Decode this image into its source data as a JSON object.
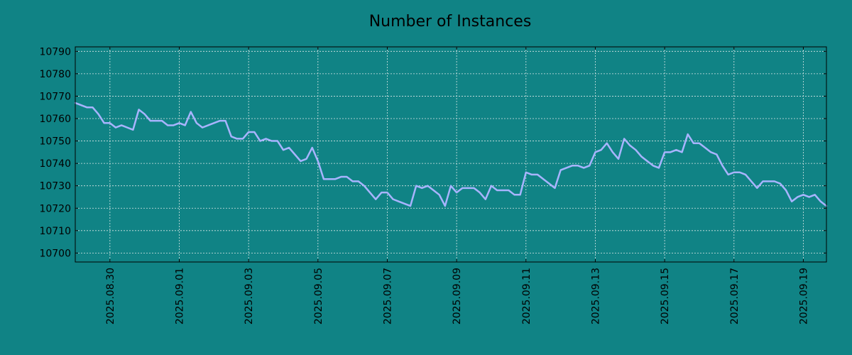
{
  "colors": {
    "background": "#108385",
    "line": "#a8b4ff",
    "grid": "#d9e6e6",
    "text": "#000000"
  },
  "chart_data": {
    "type": "line",
    "title": "Number of Instances",
    "xlabel": "",
    "ylabel": "",
    "grid": true,
    "x_start": "2025-08-29",
    "x_end": "2025-09-19T16:00",
    "x_step_hours": 4,
    "xlim": [
      "2025-08-29",
      "2025-09-19T16:00"
    ],
    "ylim": [
      10696,
      10792
    ],
    "yticks": [
      10700,
      10710,
      10720,
      10730,
      10740,
      10750,
      10760,
      10770,
      10780,
      10790
    ],
    "xticks": [
      "2025.08.30",
      "2025.09.01",
      "2025.09.03",
      "2025.09.05",
      "2025.09.07",
      "2025.09.09",
      "2025.09.11",
      "2025.09.13",
      "2025.09.15",
      "2025.09.17",
      "2025.09.19"
    ],
    "series": [
      {
        "values": [
          10767,
          10766,
          10765,
          10765,
          10762,
          10758,
          10758,
          10756,
          10757,
          10756,
          10755,
          10764,
          10762,
          10759,
          10759,
          10759,
          10757,
          10757,
          10758,
          10757,
          10763,
          10758,
          10756,
          10757,
          10758,
          10759,
          10759,
          10752,
          10751,
          10751,
          10754,
          10754,
          10750,
          10751,
          10750,
          10750,
          10746,
          10747,
          10744,
          10741,
          10742,
          10747,
          10741,
          10733,
          10733,
          10733,
          10734,
          10734,
          10732,
          10732,
          10730,
          10727,
          10724,
          10727,
          10727,
          10724,
          10723,
          10722,
          10721,
          10730,
          10729,
          10730,
          10728,
          10726,
          10721,
          10730,
          10727,
          10729,
          10729,
          10729,
          10727,
          10724,
          10730,
          10728,
          10728,
          10728,
          10726,
          10726,
          10736,
          10735,
          10735,
          10733,
          10731,
          10729,
          10737,
          10738,
          10739,
          10739,
          10738,
          10739,
          10745,
          10746,
          10749,
          10745,
          10742,
          10751,
          10748,
          10746,
          10743,
          10741,
          10739,
          10738,
          10745,
          10745,
          10746,
          10745,
          10753,
          10749,
          10749,
          10747,
          10745,
          10744,
          10739,
          10735,
          10736,
          10736,
          10735,
          10732,
          10729,
          10732,
          10732,
          10732,
          10731,
          10728,
          10723,
          10725,
          10726,
          10725,
          10726,
          10723,
          10721
        ]
      }
    ]
  }
}
